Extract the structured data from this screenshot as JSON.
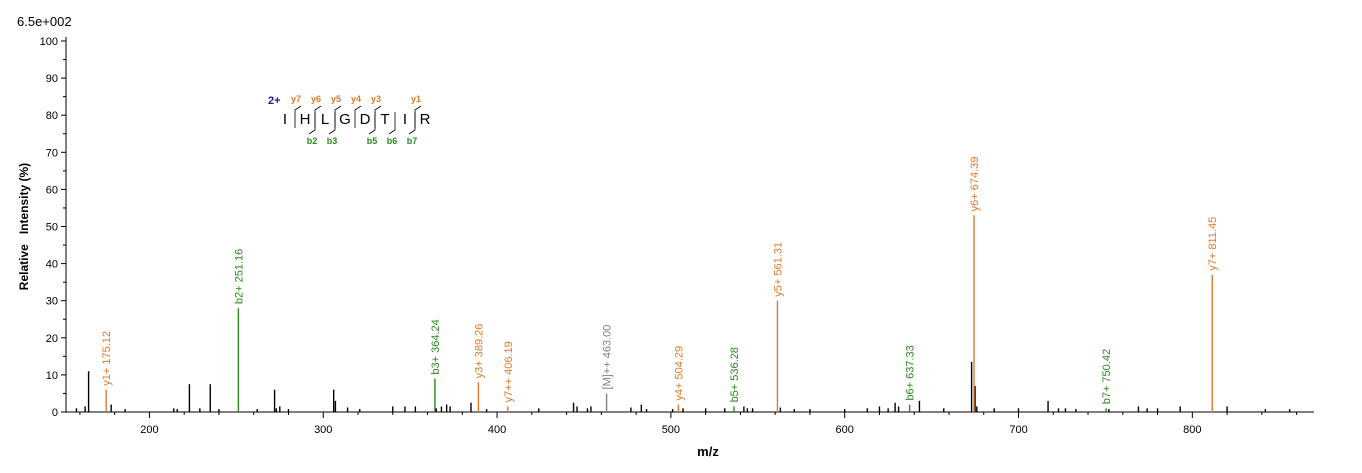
{
  "chart_data": {
    "type": "bar",
    "title": "",
    "max_intensity_label": "6.5e+002",
    "xlabel": "m/z",
    "ylabel": "Relative   Intensity (%)",
    "xlim": [
      152,
      870
    ],
    "ylim": [
      0,
      100
    ],
    "x_ticks": [
      200,
      300,
      400,
      500,
      600,
      700,
      800
    ],
    "y_ticks": [
      0,
      10,
      20,
      30,
      40,
      50,
      60,
      70,
      80,
      90,
      100
    ],
    "colors": {
      "y": "#e07a2a",
      "b": "#2a8a1f",
      "precursor": "#808080",
      "noise": "#000000"
    },
    "peptide": {
      "charge_label": "2+",
      "residues": [
        "I",
        "H",
        "L",
        "G",
        "D",
        "T",
        "I",
        "R"
      ],
      "y_ions": [
        {
          "label": "y7",
          "after": 0
        },
        {
          "label": "y6",
          "after": 1
        },
        {
          "label": "y5",
          "after": 2
        },
        {
          "label": "y4",
          "after": 3
        },
        {
          "label": "y3",
          "after": 4
        },
        {
          "label": "y1",
          "after": 6
        }
      ],
      "b_ions": [
        {
          "label": "b2",
          "after": 1
        },
        {
          "label": "b3",
          "after": 2
        },
        {
          "label": "b5",
          "after": 4
        },
        {
          "label": "b6",
          "after": 5
        },
        {
          "label": "b7",
          "after": 6
        }
      ]
    },
    "labeled_peaks": [
      {
        "mz": 175.12,
        "intensity": 6,
        "series": "y",
        "label": "y1+ 175.12"
      },
      {
        "mz": 251.16,
        "intensity": 28,
        "series": "b",
        "label": "b2+ 251.16"
      },
      {
        "mz": 364.24,
        "intensity": 9,
        "series": "b",
        "label": "b3+ 364.24"
      },
      {
        "mz": 389.26,
        "intensity": 8,
        "series": "y",
        "label": "y3+ 389.26"
      },
      {
        "mz": 406.19,
        "intensity": 1.5,
        "series": "y",
        "label": "y7++ 406.19"
      },
      {
        "mz": 463.0,
        "intensity": 5,
        "series": "precursor",
        "label": "[M]++ 463.00"
      },
      {
        "mz": 504.29,
        "intensity": 2,
        "series": "y",
        "label": "y4+ 504.29"
      },
      {
        "mz": 536.28,
        "intensity": 1.5,
        "series": "b",
        "label": "b5+ 536.28"
      },
      {
        "mz": 561.31,
        "intensity": 30,
        "series": "y",
        "label": "y5+ 561.31"
      },
      {
        "mz": 637.33,
        "intensity": 2,
        "series": "b",
        "label": "b6+ 637.33"
      },
      {
        "mz": 674.39,
        "intensity": 53,
        "series": "y",
        "label": "y6+ 674.39"
      },
      {
        "mz": 750.42,
        "intensity": 1,
        "series": "b",
        "label": "b7+ 750.42"
      },
      {
        "mz": 811.45,
        "intensity": 37,
        "series": "y",
        "label": "y7+ 811.45"
      }
    ],
    "unlabeled_peaks": [
      {
        "mz": 158,
        "intensity": 1
      },
      {
        "mz": 163,
        "intensity": 1.5
      },
      {
        "mz": 165,
        "intensity": 11
      },
      {
        "mz": 178,
        "intensity": 2
      },
      {
        "mz": 186,
        "intensity": 0.8
      },
      {
        "mz": 214,
        "intensity": 1
      },
      {
        "mz": 216,
        "intensity": 0.8
      },
      {
        "mz": 223,
        "intensity": 7.5
      },
      {
        "mz": 229,
        "intensity": 1
      },
      {
        "mz": 235,
        "intensity": 7.5
      },
      {
        "mz": 240,
        "intensity": 0.8
      },
      {
        "mz": 262,
        "intensity": 0.8
      },
      {
        "mz": 272,
        "intensity": 6
      },
      {
        "mz": 273,
        "intensity": 1
      },
      {
        "mz": 275,
        "intensity": 1.5
      },
      {
        "mz": 280,
        "intensity": 0.8
      },
      {
        "mz": 306,
        "intensity": 6
      },
      {
        "mz": 307,
        "intensity": 3
      },
      {
        "mz": 314,
        "intensity": 1.2
      },
      {
        "mz": 321,
        "intensity": 0.8
      },
      {
        "mz": 340,
        "intensity": 1.5
      },
      {
        "mz": 347,
        "intensity": 1.5
      },
      {
        "mz": 353,
        "intensity": 1.5
      },
      {
        "mz": 365,
        "intensity": 1
      },
      {
        "mz": 368,
        "intensity": 1.5
      },
      {
        "mz": 371,
        "intensity": 2
      },
      {
        "mz": 373,
        "intensity": 1.5
      },
      {
        "mz": 385,
        "intensity": 2.5
      },
      {
        "mz": 394,
        "intensity": 0.8
      },
      {
        "mz": 424,
        "intensity": 1
      },
      {
        "mz": 444,
        "intensity": 2.5
      },
      {
        "mz": 446,
        "intensity": 1.5
      },
      {
        "mz": 452,
        "intensity": 1
      },
      {
        "mz": 454,
        "intensity": 1.5
      },
      {
        "mz": 477,
        "intensity": 1.2
      },
      {
        "mz": 483,
        "intensity": 2
      },
      {
        "mz": 486,
        "intensity": 0.8
      },
      {
        "mz": 501,
        "intensity": 0.8
      },
      {
        "mz": 507,
        "intensity": 1
      },
      {
        "mz": 520,
        "intensity": 1
      },
      {
        "mz": 531,
        "intensity": 1
      },
      {
        "mz": 542,
        "intensity": 1.5
      },
      {
        "mz": 544,
        "intensity": 1
      },
      {
        "mz": 547,
        "intensity": 1
      },
      {
        "mz": 563,
        "intensity": 1.2
      },
      {
        "mz": 571,
        "intensity": 0.8
      },
      {
        "mz": 580,
        "intensity": 0.8
      },
      {
        "mz": 600,
        "intensity": 0.8
      },
      {
        "mz": 613,
        "intensity": 1
      },
      {
        "mz": 620,
        "intensity": 1.5
      },
      {
        "mz": 625,
        "intensity": 1
      },
      {
        "mz": 629,
        "intensity": 2.5
      },
      {
        "mz": 631,
        "intensity": 1.5
      },
      {
        "mz": 643,
        "intensity": 3
      },
      {
        "mz": 657,
        "intensity": 1
      },
      {
        "mz": 673,
        "intensity": 13.5
      },
      {
        "mz": 675,
        "intensity": 7
      },
      {
        "mz": 676,
        "intensity": 1.5
      },
      {
        "mz": 686,
        "intensity": 1
      },
      {
        "mz": 700,
        "intensity": 1
      },
      {
        "mz": 717,
        "intensity": 3
      },
      {
        "mz": 723,
        "intensity": 1
      },
      {
        "mz": 727,
        "intensity": 1
      },
      {
        "mz": 733,
        "intensity": 0.8
      },
      {
        "mz": 752,
        "intensity": 0.8
      },
      {
        "mz": 769,
        "intensity": 1.5
      },
      {
        "mz": 774,
        "intensity": 1
      },
      {
        "mz": 780,
        "intensity": 1
      },
      {
        "mz": 793,
        "intensity": 1.5
      },
      {
        "mz": 820,
        "intensity": 1.5
      },
      {
        "mz": 842,
        "intensity": 0.8
      },
      {
        "mz": 856,
        "intensity": 0.8
      }
    ]
  }
}
